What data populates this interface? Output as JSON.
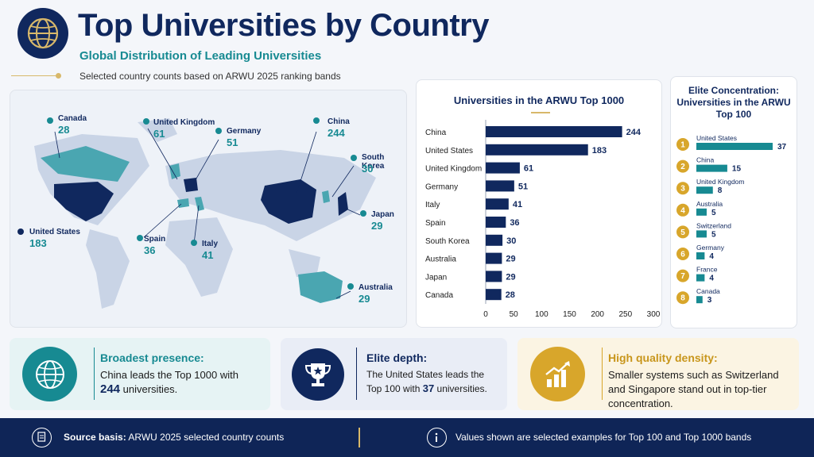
{
  "header": {
    "title": "Top Universities by Country",
    "subtitle": "Global Distribution of Leading Universities",
    "note": "Selected country counts based on ARWU 2025 ranking bands"
  },
  "map": {
    "pins": [
      {
        "name": "Canada",
        "value": "28"
      },
      {
        "name": "United Kingdom",
        "value": "61"
      },
      {
        "name": "Germany",
        "value": "51"
      },
      {
        "name": "China",
        "value": "244"
      },
      {
        "name": "South Korea",
        "value": "30"
      },
      {
        "name": "Japan",
        "value": "29"
      },
      {
        "name": "United States",
        "value": "183"
      },
      {
        "name": "Spain",
        "value": "36"
      },
      {
        "name": "Italy",
        "value": "41"
      },
      {
        "name": "Australia",
        "value": "29"
      }
    ]
  },
  "chart_data": [
    {
      "type": "bar",
      "orientation": "horizontal",
      "title": "Universities in the ARWU Top 1000",
      "categories": [
        "China",
        "United States",
        "United Kingdom",
        "Germany",
        "Italy",
        "Spain",
        "South Korea",
        "Australia",
        "Japan",
        "Canada"
      ],
      "values": [
        244,
        183,
        61,
        51,
        41,
        36,
        30,
        29,
        29,
        28
      ],
      "xlim": [
        0,
        300
      ],
      "xticks": [
        0,
        50,
        100,
        150,
        200,
        250,
        300
      ],
      "data_labels": true,
      "grid": false
    },
    {
      "type": "bar",
      "orientation": "horizontal",
      "title": "Elite Concentration: Universities in the ARWU Top 100",
      "categories": [
        "United States",
        "China",
        "United Kingdom",
        "Australia",
        "Switzerland",
        "Germany",
        "France",
        "Canada"
      ],
      "ranks": [
        "1",
        "2",
        "3",
        "4",
        "5",
        "6",
        "7",
        "8"
      ],
      "values": [
        37,
        15,
        8,
        5,
        5,
        4,
        4,
        3
      ],
      "data_labels": true
    }
  ],
  "cards": [
    {
      "head": "Broadest presence:",
      "pre": "China leads the Top 1000 with ",
      "num": "244",
      "post": " universities."
    },
    {
      "head": "Elite depth:",
      "pre": "The United States leads the Top 100 with ",
      "num": "37",
      "post": " universities."
    },
    {
      "head": "High quality density:",
      "pre": "Smaller systems such as Switzerland and Singapore stand out in top-tier concentration.",
      "num": "",
      "post": ""
    }
  ],
  "footer": {
    "source_label": "Source basis:",
    "source_text": "ARWU 2025 selected country counts",
    "info_text": "Values shown are selected examples for Top 100 and Top 1000 bands"
  },
  "colors": {
    "navy": "#10285e",
    "teal": "#178a92",
    "gold": "#d8a62b"
  }
}
